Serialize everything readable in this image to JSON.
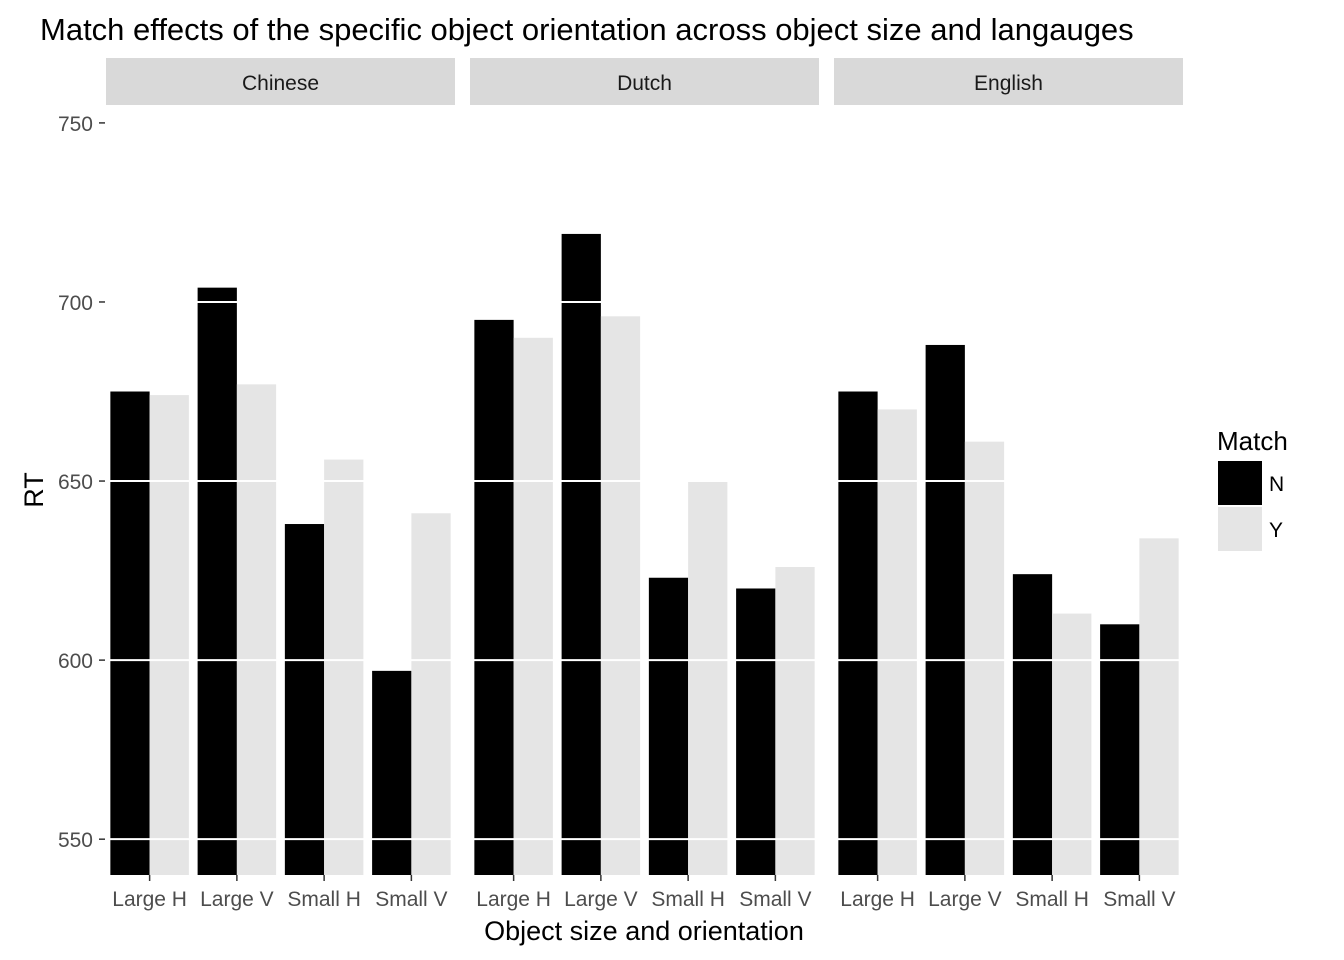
{
  "chart_data": {
    "type": "bar",
    "title": "Match effects of the specific object orientation across object size and langauges",
    "xlabel": "Object size and orientation",
    "ylabel": "RT",
    "ylim": [
      540,
      755
    ],
    "y_ticks": [
      "550",
      "600",
      "650",
      "700",
      "750"
    ],
    "categories": [
      "Large H",
      "Large V",
      "Small H",
      "Small V"
    ],
    "facets": [
      {
        "label": "Chinese",
        "series": [
          {
            "name": "N",
            "values": [
              675,
              704,
              638,
              597
            ]
          },
          {
            "name": "Y",
            "values": [
              674,
              677,
              656,
              641
            ]
          }
        ]
      },
      {
        "label": "Dutch",
        "series": [
          {
            "name": "N",
            "values": [
              695,
              719,
              623,
              620
            ]
          },
          {
            "name": "Y",
            "values": [
              690,
              696,
              650,
              626
            ]
          }
        ]
      },
      {
        "label": "English",
        "series": [
          {
            "name": "N",
            "values": [
              675,
              688,
              624,
              610
            ]
          },
          {
            "name": "Y",
            "values": [
              670,
              661,
              613,
              634
            ]
          }
        ]
      }
    ],
    "legend": {
      "title": "Match",
      "position": "right",
      "entries": [
        {
          "label": "N",
          "color": "#000000"
        },
        {
          "label": "Y",
          "color": "#e5e5e5"
        }
      ]
    },
    "colors": {
      "N": "#000000",
      "Y": "#e5e5e5",
      "strip": "#d9d9d9",
      "grid": "#ffffff"
    },
    "grid": true
  }
}
